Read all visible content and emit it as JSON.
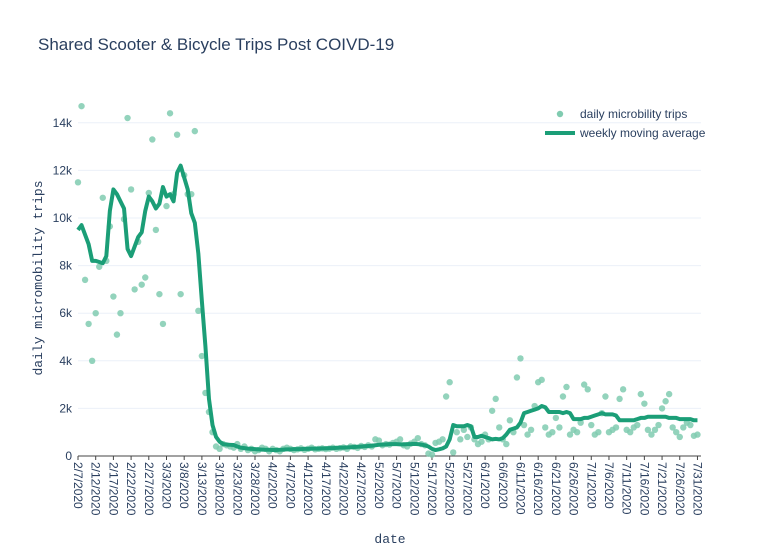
{
  "chart_data": {
    "type": "scatter-line",
    "title": "Shared Scooter & Bicycle Trips Post COIVD-19",
    "x_label": "date",
    "y_label": "daily micromobility trips",
    "x": [
      "2/7/2020",
      "2/8/2020",
      "2/9/2020",
      "2/10/2020",
      "2/11/2020",
      "2/12/2020",
      "2/13/2020",
      "2/14/2020",
      "2/15/2020",
      "2/16/2020",
      "2/17/2020",
      "2/18/2020",
      "2/19/2020",
      "2/20/2020",
      "2/21/2020",
      "2/22/2020",
      "2/23/2020",
      "2/24/2020",
      "2/25/2020",
      "2/26/2020",
      "2/27/2020",
      "2/28/2020",
      "2/29/2020",
      "3/1/2020",
      "3/2/2020",
      "3/3/2020",
      "3/4/2020",
      "3/5/2020",
      "3/6/2020",
      "3/7/2020",
      "3/8/2020",
      "3/9/2020",
      "3/10/2020",
      "3/11/2020",
      "3/12/2020",
      "3/13/2020",
      "3/14/2020",
      "3/15/2020",
      "3/16/2020",
      "3/17/2020",
      "3/18/2020",
      "3/19/2020",
      "3/20/2020",
      "3/21/2020",
      "3/22/2020",
      "3/23/2020",
      "3/24/2020",
      "3/25/2020",
      "3/26/2020",
      "3/27/2020",
      "3/28/2020",
      "3/29/2020",
      "3/30/2020",
      "3/31/2020",
      "4/1/2020",
      "4/2/2020",
      "4/3/2020",
      "4/4/2020",
      "4/5/2020",
      "4/6/2020",
      "4/7/2020",
      "4/8/2020",
      "4/9/2020",
      "4/10/2020",
      "4/11/2020",
      "4/12/2020",
      "4/13/2020",
      "4/14/2020",
      "4/15/2020",
      "4/16/2020",
      "4/17/2020",
      "4/18/2020",
      "4/19/2020",
      "4/20/2020",
      "4/21/2020",
      "4/22/2020",
      "4/23/2020",
      "4/24/2020",
      "4/25/2020",
      "4/26/2020",
      "4/27/2020",
      "4/28/2020",
      "4/29/2020",
      "4/30/2020",
      "5/1/2020",
      "5/2/2020",
      "5/3/2020",
      "5/4/2020",
      "5/5/2020",
      "5/6/2020",
      "5/7/2020",
      "5/8/2020",
      "5/9/2020",
      "5/10/2020",
      "5/11/2020",
      "5/12/2020",
      "5/13/2020",
      "5/14/2020",
      "5/15/2020",
      "5/16/2020",
      "5/17/2020",
      "5/18/2020",
      "5/19/2020",
      "5/20/2020",
      "5/21/2020",
      "5/22/2020",
      "5/23/2020",
      "5/24/2020",
      "5/25/2020",
      "5/26/2020",
      "5/27/2020",
      "5/28/2020",
      "5/29/2020",
      "5/30/2020",
      "5/31/2020",
      "6/1/2020",
      "6/2/2020",
      "6/3/2020",
      "6/4/2020",
      "6/5/2020",
      "6/6/2020",
      "6/7/2020",
      "6/8/2020",
      "6/9/2020",
      "6/10/2020",
      "6/11/2020",
      "6/12/2020",
      "6/13/2020",
      "6/14/2020",
      "6/15/2020",
      "6/16/2020",
      "6/17/2020",
      "6/18/2020",
      "6/19/2020",
      "6/20/2020",
      "6/21/2020",
      "6/22/2020",
      "6/23/2020",
      "6/24/2020",
      "6/25/2020",
      "6/26/2020",
      "6/27/2020",
      "6/28/2020",
      "6/29/2020",
      "6/30/2020",
      "7/1/2020",
      "7/2/2020",
      "7/3/2020",
      "7/4/2020",
      "7/5/2020",
      "7/6/2020",
      "7/7/2020",
      "7/8/2020",
      "7/9/2020",
      "7/10/2020",
      "7/11/2020",
      "7/12/2020",
      "7/13/2020",
      "7/14/2020",
      "7/15/2020",
      "7/16/2020",
      "7/17/2020",
      "7/18/2020",
      "7/19/2020",
      "7/20/2020",
      "7/21/2020",
      "7/22/2020",
      "7/23/2020",
      "7/24/2020",
      "7/25/2020",
      "7/26/2020",
      "7/27/2020",
      "7/28/2020",
      "7/29/2020",
      "7/30/2020",
      "7/31/2020"
    ],
    "series": [
      {
        "name": "daily microbility trips",
        "mode": "markers",
        "color": "#80cbb0",
        "values": [
          11500,
          14700,
          7400,
          5550,
          4000,
          6000,
          7950,
          10850,
          8200,
          9650,
          6700,
          5100,
          6000,
          9950,
          14200,
          11200,
          7000,
          9000,
          7200,
          7500,
          11050,
          13300,
          9500,
          6800,
          5550,
          10500,
          14400,
          11000,
          13500,
          6800,
          11800,
          11000,
          11000,
          13650,
          6100,
          4200,
          2650,
          1850,
          1000,
          400,
          300,
          500,
          450,
          400,
          350,
          500,
          300,
          400,
          250,
          300,
          200,
          250,
          350,
          300,
          200,
          300,
          250,
          200,
          300,
          350,
          300,
          250,
          280,
          320,
          260,
          300,
          350,
          280,
          300,
          320,
          290,
          310,
          350,
          300,
          330,
          360,
          300,
          400,
          380,
          340,
          420,
          380,
          450,
          400,
          700,
          650,
          450,
          500,
          480,
          550,
          600,
          700,
          450,
          400,
          520,
          600,
          750,
          500,
          450,
          100,
          60,
          550,
          600,
          700,
          2500,
          3100,
          150,
          1000,
          700,
          1100,
          800,
          1200,
          700,
          500,
          600,
          900,
          700,
          1900,
          2400,
          1200,
          700,
          500,
          1500,
          1000,
          3300,
          4100,
          1300,
          900,
          1100,
          2100,
          3100,
          3200,
          1200,
          900,
          1000,
          1600,
          1200,
          2500,
          2900,
          900,
          1100,
          1000,
          1400,
          3000,
          2800,
          1300,
          900,
          1000,
          1800,
          2500,
          1000,
          1100,
          1200,
          2400,
          2800,
          1100,
          1000,
          1200,
          1300,
          2600,
          2200,
          1100,
          900,
          1100,
          1300,
          2000,
          2300,
          2600,
          1200,
          1000,
          800,
          1200,
          1400,
          1300,
          850,
          900
        ]
      },
      {
        "name": "weekly moving average",
        "mode": "lines",
        "color": "#1b9e77",
        "values": [
          9500,
          9700,
          9300,
          8900,
          8200,
          8200,
          8150,
          8100,
          8400,
          10300,
          11200,
          11000,
          10700,
          10400,
          8700,
          8400,
          8800,
          9200,
          9400,
          10300,
          10900,
          10700,
          10400,
          10600,
          11300,
          10900,
          11000,
          10700,
          11900,
          12200,
          11700,
          11200,
          10200,
          9800,
          8500,
          6500,
          4600,
          2400,
          1300,
          800,
          600,
          500,
          480,
          470,
          460,
          400,
          350,
          330,
          310,
          300,
          290,
          280,
          270,
          260,
          260,
          250,
          250,
          260,
          270,
          280,
          280,
          290,
          290,
          290,
          300,
          300,
          310,
          310,
          310,
          320,
          320,
          330,
          330,
          340,
          350,
          350,
          360,
          370,
          380,
          390,
          400,
          410,
          420,
          430,
          450,
          470,
          480,
          490,
          500,
          500,
          500,
          490,
          490,
          500,
          500,
          510,
          500,
          480,
          450,
          400,
          300,
          250,
          280,
          320,
          400,
          700,
          1300,
          1250,
          1250,
          1250,
          1300,
          1250,
          800,
          800,
          850,
          800,
          750,
          700,
          720,
          700,
          750,
          900,
          1100,
          1150,
          1200,
          1400,
          1800,
          1850,
          1900,
          1950,
          2000,
          2100,
          2050,
          1850,
          1850,
          1850,
          1850,
          1800,
          1850,
          1800,
          1550,
          1550,
          1550,
          1600,
          1600,
          1650,
          1700,
          1750,
          1800,
          1750,
          1750,
          1750,
          1700,
          1500,
          1500,
          1500,
          1500,
          1500,
          1550,
          1600,
          1600,
          1650,
          1650,
          1650,
          1650,
          1650,
          1650,
          1600,
          1600,
          1600,
          1550,
          1550,
          1550,
          1550,
          1500,
          1500
        ]
      }
    ],
    "xlim": [
      "2/7/2020",
      "8/1/2020"
    ],
    "xticks": [
      "2/7/2020",
      "2/12/2020",
      "2/17/2020",
      "2/22/2020",
      "2/27/2020",
      "3/3/2020",
      "3/8/2020",
      "3/13/2020",
      "3/18/2020",
      "3/23/2020",
      "3/28/2020",
      "4/2/2020",
      "4/7/2020",
      "4/12/2020",
      "4/17/2020",
      "4/22/2020",
      "4/27/2020",
      "5/2/2020",
      "5/7/2020",
      "5/12/2020",
      "5/17/2020",
      "5/22/2020",
      "5/27/2020",
      "6/1/2020",
      "6/6/2020",
      "6/11/2020",
      "6/16/2020",
      "6/21/2020",
      "6/26/2020",
      "7/1/2020",
      "7/6/2020",
      "7/11/2020",
      "7/16/2020",
      "7/21/2020",
      "7/26/2020",
      "7/31/2020"
    ],
    "ylim": [
      0,
      15000
    ],
    "yticks": [
      0,
      {
        "value": 2000,
        "label": "2k"
      },
      {
        "value": 4000,
        "label": "4k"
      },
      {
        "value": 6000,
        "label": "6k"
      },
      {
        "value": 8000,
        "label": "8k"
      },
      {
        "value": 10000,
        "label": "10k"
      },
      {
        "value": 12000,
        "label": "12k"
      },
      {
        "value": 14000,
        "label": "14k"
      }
    ],
    "grid": true,
    "legend": "top-right"
  }
}
